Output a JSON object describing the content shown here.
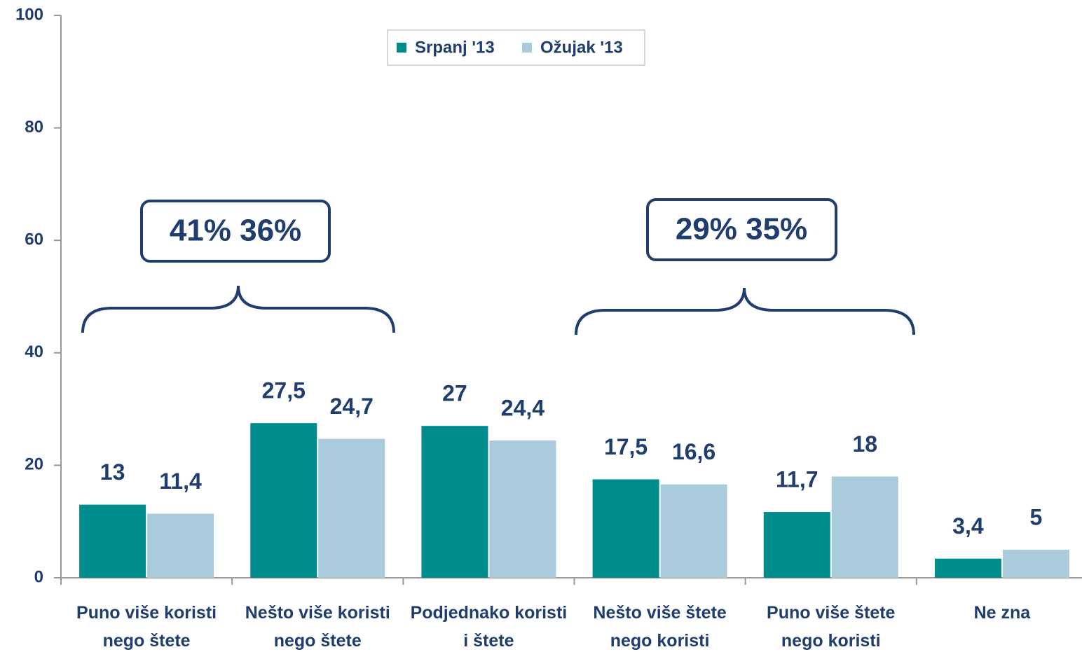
{
  "chart_data": {
    "type": "bar",
    "categories": [
      "Puno više koristi nego štete",
      "Nešto više koristi nego štete",
      "Podjednako koristi i štete",
      "Nešto više štete nego koristi",
      "Puno više štete nego koristi",
      "Ne zna"
    ],
    "series": [
      {
        "name": "Srpanj '13",
        "color": "#008c8c",
        "values": [
          13,
          27.5,
          27,
          17.5,
          11.7,
          3.4
        ],
        "value_labels": [
          "13",
          "27,5",
          "27",
          "17,5",
          "11,7",
          "3,4"
        ]
      },
      {
        "name": "Ožujak '13",
        "color": "#a9cbdc",
        "values": [
          11.4,
          24.7,
          24.4,
          16.6,
          18,
          5
        ],
        "value_labels": [
          "11,4",
          "24,7",
          "24,4",
          "16,6",
          "18",
          "5"
        ]
      }
    ],
    "ylim": [
      0,
      100
    ],
    "yticks": [
      0,
      20,
      40,
      60,
      80,
      100
    ],
    "annotations": [
      "41% 36%",
      "29% 35%"
    ]
  }
}
